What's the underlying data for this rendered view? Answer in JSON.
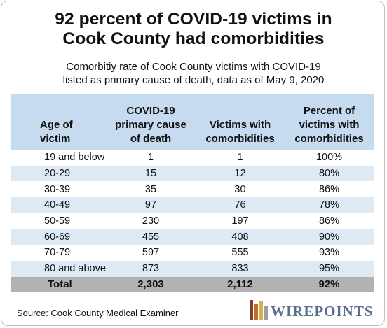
{
  "title_line1": "92 percent of COVID-19 victims in",
  "title_line2": "Cook County had comorbidities",
  "subtitle_line1": "Comorbitiy rate of Cook County victims with COVID-19",
  "subtitle_line2": "listed as primary cause of death, data as of May 9, 2020",
  "source": "Source: Cook County Medical Examiner",
  "logo_text": "WIREPOINTS",
  "colors": {
    "header_bg": "#c6daf0",
    "shaded_row_bg": "#dde9f5",
    "total_row_bg": "#b2b2b2",
    "logo_text": "#5a6f8f",
    "logo_bars": [
      "#8b3a2b",
      "#b8722e",
      "#d8b24a",
      "#9e9e9e"
    ]
  },
  "chart_data": {
    "type": "table",
    "columns": [
      [
        "Age of",
        "victim"
      ],
      [
        "COVID-19",
        "primary cause",
        "of death"
      ],
      [
        "Victims with",
        "comorbidities"
      ],
      [
        "Percent of",
        "victims with",
        "comorbidities"
      ]
    ],
    "rows": [
      [
        "19 and below",
        "1",
        "1",
        "100%"
      ],
      [
        "20-29",
        "15",
        "12",
        "80%"
      ],
      [
        "30-39",
        "35",
        "30",
        "86%"
      ],
      [
        "40-49",
        "97",
        "76",
        "78%"
      ],
      [
        "50-59",
        "230",
        "197",
        "86%"
      ],
      [
        "60-69",
        "455",
        "408",
        "90%"
      ],
      [
        "70-79",
        "597",
        "555",
        "93%"
      ],
      [
        "80 and above",
        "873",
        "833",
        "95%"
      ]
    ],
    "total": [
      "Total",
      "2,303",
      "2,112",
      "92%"
    ]
  }
}
